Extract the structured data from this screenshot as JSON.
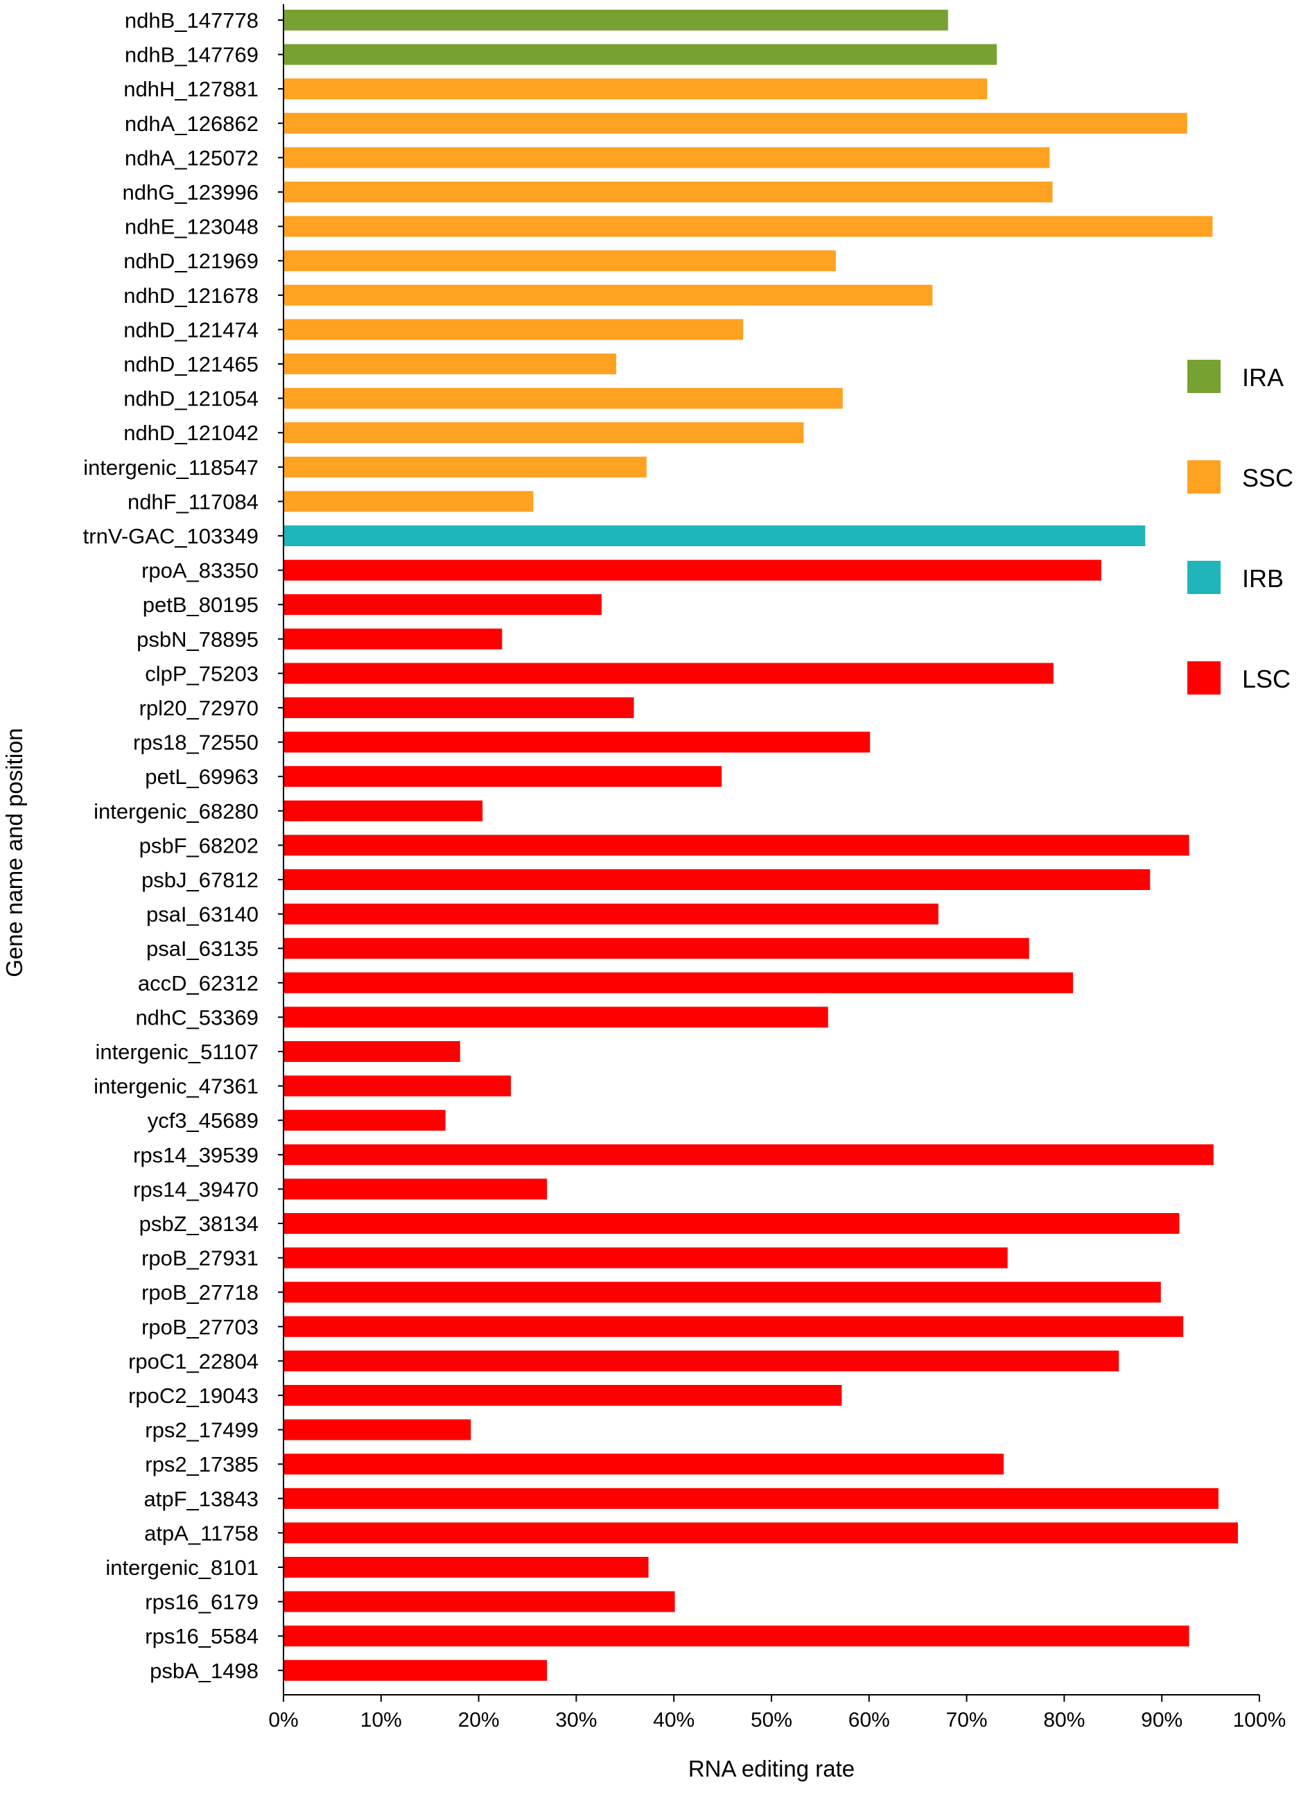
{
  "chart_data": {
    "type": "bar",
    "orientation": "horizontal",
    "title": "",
    "xlabel": "RNA editing rate",
    "ylabel": "Gene name and position",
    "xlim": [
      0,
      100
    ],
    "x_ticks": [
      "0%",
      "10%",
      "20%",
      "30%",
      "40%",
      "50%",
      "60%",
      "70%",
      "80%",
      "90%",
      "100%"
    ],
    "grid": false,
    "legend_position": "right",
    "legend": [
      {
        "name": "IRA",
        "color": "#77a232"
      },
      {
        "name": "SSC",
        "color": "#ffa221"
      },
      {
        "name": "IRB",
        "color": "#1fb5b9"
      },
      {
        "name": "LSC",
        "color": "#ff0000"
      }
    ],
    "colors": {
      "IRA": "#77a232",
      "SSC": "#ffa221",
      "IRB": "#1fb5b9",
      "LSC": "#ff0000"
    },
    "categories": [
      "ndhB_147778",
      "ndhB_147769",
      "ndhH_127881",
      "ndhA_126862",
      "ndhA_125072",
      "ndhG_123996",
      "ndhE_123048",
      "ndhD_121969",
      "ndhD_121678",
      "ndhD_121474",
      "ndhD_121465",
      "ndhD_121054",
      "ndhD_121042",
      "intergenic_118547",
      "ndhF_117084",
      "trnV-GAC_103349",
      "rpoA_83350",
      "petB_80195",
      "psbN_78895",
      "clpP_75203",
      "rpl20_72970",
      "rps18_72550",
      "petL_69963",
      "intergenic_68280",
      "psbF_68202",
      "psbJ_67812",
      "psaI_63140",
      "psaI_63135",
      "accD_62312",
      "ndhC_53369",
      "intergenic_51107",
      "intergenic_47361",
      "ycf3_45689",
      "rps14_39539",
      "rps14_39470",
      "psbZ_38134",
      "rpoB_27931",
      "rpoB_27718",
      "rpoB_27703",
      "rpoC1_22804",
      "rpoC2_19043",
      "rps2_17499",
      "rps2_17385",
      "atpF_13843",
      "atpA_11758",
      "intergenic_8101",
      "rps16_6179",
      "rps16_5584",
      "psbA_1498"
    ],
    "regions": [
      "IRA",
      "IRA",
      "SSC",
      "SSC",
      "SSC",
      "SSC",
      "SSC",
      "SSC",
      "SSC",
      "SSC",
      "SSC",
      "SSC",
      "SSC",
      "SSC",
      "SSC",
      "IRB",
      "LSC",
      "LSC",
      "LSC",
      "LSC",
      "LSC",
      "LSC",
      "LSC",
      "LSC",
      "LSC",
      "LSC",
      "LSC",
      "LSC",
      "LSC",
      "LSC",
      "LSC",
      "LSC",
      "LSC",
      "LSC",
      "LSC",
      "LSC",
      "LSC",
      "LSC",
      "LSC",
      "LSC",
      "LSC",
      "LSC",
      "LSC",
      "LSC",
      "LSC",
      "LSC",
      "LSC",
      "LSC",
      "LSC"
    ],
    "values": [
      68.1,
      73.1,
      72.1,
      92.6,
      78.5,
      78.8,
      95.2,
      56.6,
      66.5,
      47.1,
      34.1,
      57.3,
      53.3,
      37.2,
      25.6,
      88.3,
      83.8,
      32.6,
      22.4,
      78.9,
      35.9,
      60.1,
      44.9,
      20.4,
      92.8,
      88.8,
      67.1,
      76.4,
      80.9,
      55.8,
      18.1,
      23.3,
      16.6,
      95.3,
      27.0,
      91.8,
      74.2,
      89.9,
      92.2,
      85.6,
      57.2,
      19.2,
      73.8,
      95.8,
      97.8,
      37.4,
      40.1,
      92.8,
      27.0
    ]
  }
}
